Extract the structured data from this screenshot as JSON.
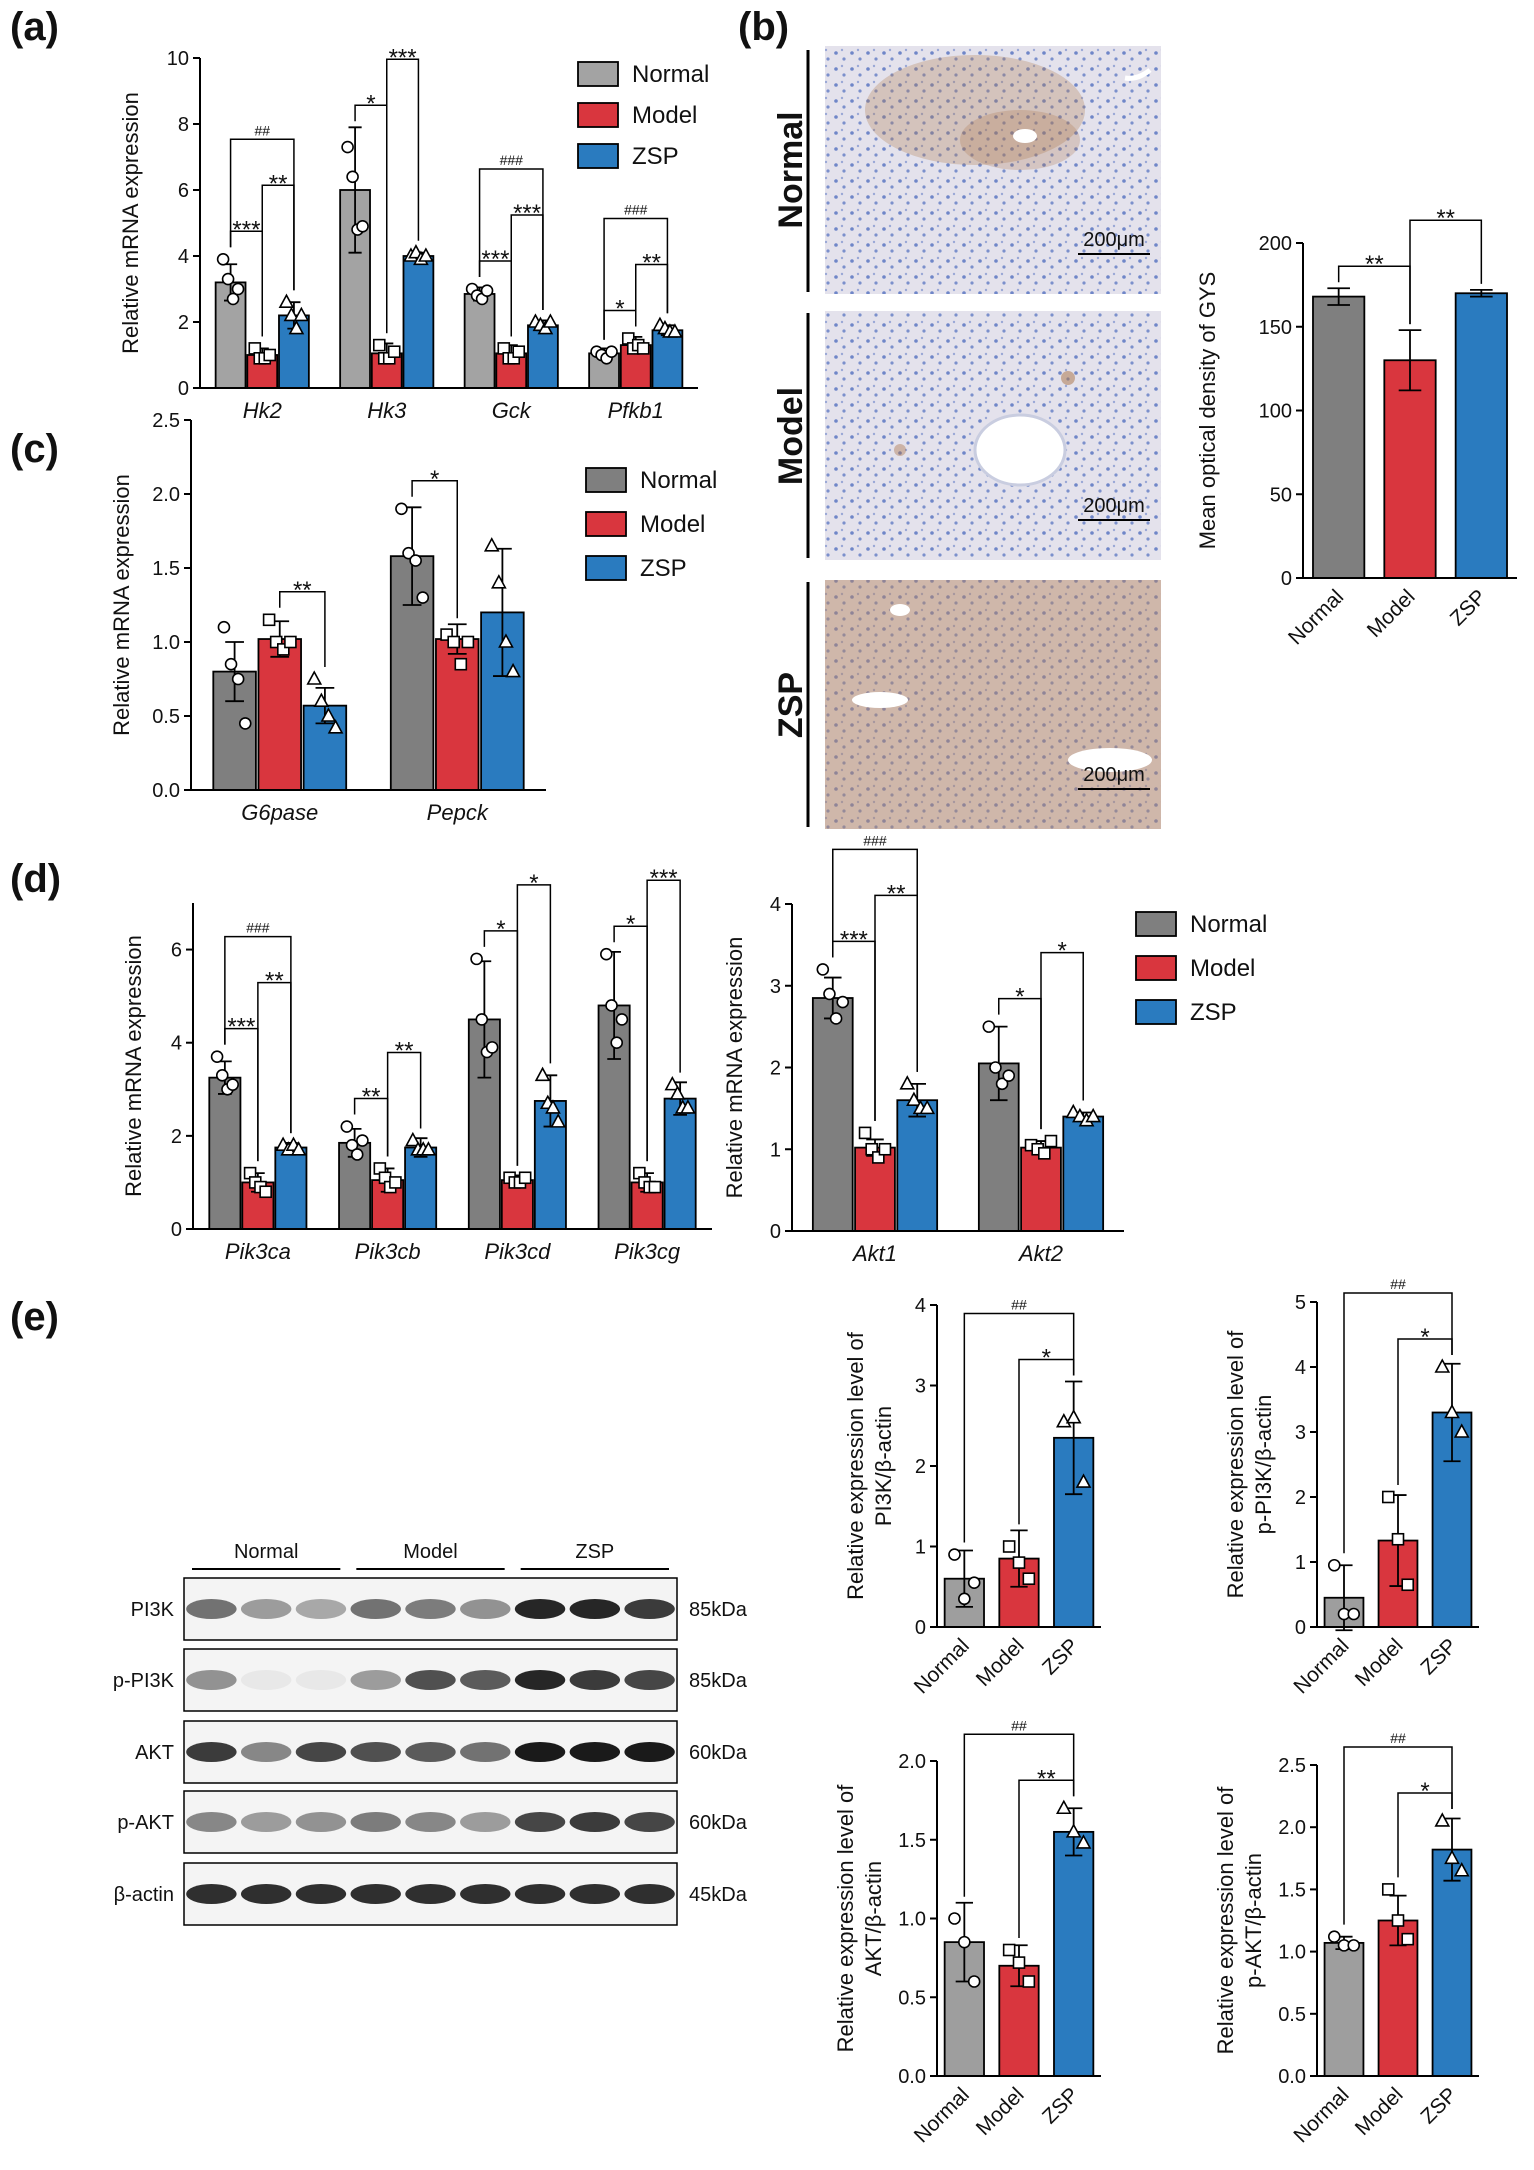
{
  "panel_labels": [
    "(a)",
    "(b)",
    "(c)",
    "(d)",
    "(e)"
  ],
  "micrographs": {
    "labels": [
      "Normal",
      "Model",
      "ZSP"
    ],
    "scale_bars": [
      "200μm",
      "200μm",
      "200μm"
    ]
  },
  "western_blot": {
    "groups": [
      "Normal",
      "Model",
      "ZSP"
    ],
    "rows": [
      {
        "protein": "PI3K",
        "size": "85kDa"
      },
      {
        "protein": "p-PI3K",
        "size": "85kDa"
      },
      {
        "protein": "AKT",
        "size": "60kDa"
      },
      {
        "protein": "p-AKT",
        "size": "60kDa"
      },
      {
        "protein": "β-actin",
        "size": "45kDa"
      }
    ]
  },
  "chart_data": [
    {
      "type": "bar",
      "ylabel": "Relative mRNA expression",
      "ylim": [
        0,
        10
      ],
      "yticks": [
        0,
        2,
        4,
        6,
        8,
        10
      ],
      "categories": [
        "Hk2",
        "Hk3",
        "Gck",
        "Pfkb1"
      ],
      "italic_categories": true,
      "legend": "top-right",
      "series": [
        {
          "name": "Normal",
          "color": "#a3a3a3",
          "values": [
            3.2,
            6.0,
            2.85,
            1.05
          ],
          "errors": [
            0.55,
            1.9,
            0.2,
            0.15
          ],
          "points": [
            [
              3.9,
              3.3,
              2.7,
              3.0
            ],
            [
              7.3,
              6.4,
              4.8,
              4.9
            ],
            [
              3.0,
              2.8,
              2.7,
              2.95
            ],
            [
              1.1,
              1.0,
              0.9,
              1.1
            ]
          ]
        },
        {
          "name": "Model",
          "color": "#d9363e",
          "values": [
            1.0,
            1.05,
            1.05,
            1.3
          ],
          "errors": [
            0.2,
            0.3,
            0.25,
            0.25
          ],
          "points": [
            [
              1.2,
              0.9,
              0.9,
              1.0
            ],
            [
              1.3,
              0.9,
              0.9,
              1.1
            ],
            [
              1.2,
              0.9,
              0.9,
              1.1
            ],
            [
              1.5,
              1.2,
              1.3,
              1.2
            ]
          ]
        },
        {
          "name": "ZSP",
          "color": "#2a7bbf",
          "values": [
            2.2,
            4.0,
            1.9,
            1.75
          ],
          "errors": [
            0.4,
            0.1,
            0.15,
            0.15
          ],
          "points": [
            [
              2.6,
              2.2,
              1.8,
              2.2
            ],
            [
              4.0,
              4.1,
              3.9,
              4.0
            ],
            [
              2.0,
              1.9,
              1.8,
              2.0
            ],
            [
              1.9,
              1.8,
              1.7,
              1.7
            ]
          ]
        }
      ],
      "annotations": [
        {
          "category": "Hk2",
          "pair": [
            "Normal",
            "Model"
          ],
          "label": "***"
        },
        {
          "category": "Hk2",
          "pair": [
            "Model",
            "ZSP"
          ],
          "label": "**"
        },
        {
          "category": "Hk2",
          "pair": [
            "Normal",
            "ZSP"
          ],
          "label": "##"
        },
        {
          "category": "Hk3",
          "pair": [
            "Normal",
            "Model"
          ],
          "label": "*"
        },
        {
          "category": "Hk3",
          "pair": [
            "Model",
            "ZSP"
          ],
          "label": "***"
        },
        {
          "category": "Gck",
          "pair": [
            "Normal",
            "Model"
          ],
          "label": "***"
        },
        {
          "category": "Gck",
          "pair": [
            "Model",
            "ZSP"
          ],
          "label": "***"
        },
        {
          "category": "Gck",
          "pair": [
            "Normal",
            "ZSP"
          ],
          "label": "###"
        },
        {
          "category": "Pfkb1",
          "pair": [
            "Normal",
            "Model"
          ],
          "label": "*"
        },
        {
          "category": "Pfkb1",
          "pair": [
            "Model",
            "ZSP"
          ],
          "label": "**"
        },
        {
          "category": "Pfkb1",
          "pair": [
            "Normal",
            "ZSP"
          ],
          "label": "###"
        }
      ]
    },
    {
      "type": "bar",
      "ylabel": "Mean optical density of GYS",
      "ylim": [
        0,
        200
      ],
      "yticks": [
        0,
        50,
        100,
        150,
        200
      ],
      "categories": [
        "Normal",
        "Model",
        "ZSP"
      ],
      "rotate_categories": true,
      "colors": [
        "#7f7f7f",
        "#d9363e",
        "#2a7bbf"
      ],
      "values": [
        168,
        130,
        170
      ],
      "errors": [
        5,
        18,
        2
      ],
      "annotations": [
        {
          "pair": [
            "Normal",
            "Model"
          ],
          "label": "**"
        },
        {
          "pair": [
            "Model",
            "ZSP"
          ],
          "label": "**"
        }
      ]
    },
    {
      "type": "bar",
      "ylabel": "Relative mRNA expression",
      "ylim": [
        0,
        2.5
      ],
      "yticks": [
        {
          "value": 0,
          "label": "0.0"
        },
        0.5,
        {
          "value": 1,
          "label": "1.0"
        },
        1.5,
        {
          "value": 2,
          "label": "2.0"
        },
        2.5
      ],
      "categories": [
        "G6pase",
        "Pepck"
      ],
      "italic_categories": true,
      "legend": "top-right",
      "series": [
        {
          "name": "Normal",
          "color": "#7f7f7f",
          "values": [
            0.8,
            1.58
          ],
          "errors": [
            0.2,
            0.33
          ],
          "points": [
            [
              1.1,
              0.85,
              0.75,
              0.45
            ],
            [
              1.9,
              1.6,
              1.55,
              1.3
            ]
          ]
        },
        {
          "name": "Model",
          "color": "#d9363e",
          "values": [
            1.02,
            1.02
          ],
          "errors": [
            0.12,
            0.1
          ],
          "points": [
            [
              1.15,
              1.0,
              0.95,
              1.0
            ],
            [
              1.05,
              1.0,
              0.85,
              1.0
            ]
          ]
        },
        {
          "name": "ZSP",
          "color": "#2a7bbf",
          "values": [
            0.57,
            1.2
          ],
          "errors": [
            0.12,
            0.43
          ],
          "points": [
            [
              0.75,
              0.6,
              0.5,
              0.42
            ],
            [
              1.65,
              1.4,
              1.0,
              0.8
            ]
          ]
        }
      ],
      "annotations": [
        {
          "category": "G6pase",
          "pair": [
            "Model",
            "ZSP"
          ],
          "label": "**"
        },
        {
          "category": "Pepck",
          "pair": [
            "Normal",
            "Model"
          ],
          "label": "*"
        }
      ]
    },
    {
      "type": "bar",
      "ylabel": "Relative mRNA expression",
      "ylim": [
        0,
        7
      ],
      "yticks": [
        0,
        2,
        4,
        6
      ],
      "categories": [
        "Pik3ca",
        "Pik3cb",
        "Pik3cd",
        "Pik3cg"
      ],
      "italic_categories": true,
      "series": [
        {
          "name": "Normal",
          "color": "#7f7f7f",
          "values": [
            3.25,
            1.85,
            4.5,
            4.8
          ],
          "errors": [
            0.35,
            0.3,
            1.25,
            1.15
          ],
          "points": [
            [
              3.7,
              3.3,
              3.0,
              3.1
            ],
            [
              2.2,
              1.8,
              1.6,
              1.9
            ],
            [
              5.8,
              4.5,
              3.8,
              3.9
            ],
            [
              5.9,
              4.8,
              4.0,
              4.5
            ]
          ]
        },
        {
          "name": "Model",
          "color": "#d9363e",
          "values": [
            1.0,
            1.05,
            1.05,
            1.0
          ],
          "errors": [
            0.2,
            0.25,
            0.1,
            0.2
          ],
          "points": [
            [
              1.2,
              1.0,
              0.9,
              0.8
            ],
            [
              1.3,
              1.1,
              0.9,
              1.0
            ],
            [
              1.1,
              1.0,
              1.0,
              1.1
            ],
            [
              1.2,
              1.0,
              0.9,
              0.9
            ]
          ]
        },
        {
          "name": "ZSP",
          "color": "#2a7bbf",
          "values": [
            1.75,
            1.75,
            2.75,
            2.8
          ],
          "errors": [
            0.1,
            0.2,
            0.55,
            0.35
          ],
          "points": [
            [
              1.8,
              1.7,
              1.8,
              1.7
            ],
            [
              1.9,
              1.7,
              1.7,
              1.7
            ],
            [
              3.3,
              2.7,
              2.6,
              2.3
            ],
            [
              3.1,
              2.9,
              2.6,
              2.6
            ]
          ]
        }
      ],
      "annotations": [
        {
          "category": "Pik3ca",
          "pair": [
            "Normal",
            "Model"
          ],
          "label": "***"
        },
        {
          "category": "Pik3ca",
          "pair": [
            "Model",
            "ZSP"
          ],
          "label": "**"
        },
        {
          "category": "Pik3ca",
          "pair": [
            "Normal",
            "ZSP"
          ],
          "label": "###"
        },
        {
          "category": "Pik3cb",
          "pair": [
            "Normal",
            "Model"
          ],
          "label": "**"
        },
        {
          "category": "Pik3cb",
          "pair": [
            "Model",
            "ZSP"
          ],
          "label": "**"
        },
        {
          "category": "Pik3cd",
          "pair": [
            "Normal",
            "Model"
          ],
          "label": "*"
        },
        {
          "category": "Pik3cd",
          "pair": [
            "Model",
            "ZSP"
          ],
          "label": "*"
        },
        {
          "category": "Pik3cg",
          "pair": [
            "Normal",
            "Model"
          ],
          "label": "*"
        },
        {
          "category": "Pik3cg",
          "pair": [
            "Model",
            "ZSP"
          ],
          "label": "***"
        }
      ]
    },
    {
      "type": "bar",
      "ylabel": "Relative mRNA expression",
      "ylim": [
        0,
        4
      ],
      "yticks": [
        0,
        1,
        2,
        3,
        4
      ],
      "categories": [
        "Akt1",
        "Akt2"
      ],
      "italic_categories": true,
      "legend": "top-right",
      "series": [
        {
          "name": "Normal",
          "color": "#7f7f7f",
          "values": [
            2.85,
            2.05
          ],
          "errors": [
            0.25,
            0.45
          ],
          "points": [
            [
              3.2,
              2.9,
              2.6,
              2.8
            ],
            [
              2.5,
              2.0,
              1.8,
              1.9
            ]
          ]
        },
        {
          "name": "Model",
          "color": "#d9363e",
          "values": [
            1.02,
            1.02
          ],
          "errors": [
            0.1,
            0.08
          ],
          "points": [
            [
              1.2,
              1.0,
              0.9,
              1.0
            ],
            [
              1.05,
              1.0,
              0.95,
              1.1
            ]
          ]
        },
        {
          "name": "ZSP",
          "color": "#2a7bbf",
          "values": [
            1.6,
            1.4
          ],
          "errors": [
            0.2,
            0.05
          ],
          "points": [
            [
              1.8,
              1.6,
              1.5,
              1.5
            ],
            [
              1.45,
              1.4,
              1.35,
              1.4
            ]
          ]
        }
      ],
      "annotations": [
        {
          "category": "Akt1",
          "pair": [
            "Normal",
            "Model"
          ],
          "label": "***"
        },
        {
          "category": "Akt1",
          "pair": [
            "Model",
            "ZSP"
          ],
          "label": "**"
        },
        {
          "category": "Akt1",
          "pair": [
            "Normal",
            "ZSP"
          ],
          "label": "###"
        },
        {
          "category": "Akt2",
          "pair": [
            "Normal",
            "Model"
          ],
          "label": "*"
        },
        {
          "category": "Akt2",
          "pair": [
            "Model",
            "ZSP"
          ],
          "label": "*"
        }
      ]
    },
    {
      "type": "bar",
      "ylabel": [
        "Relative expression level of",
        "PI3K/β-actin"
      ],
      "ylim": [
        0,
        4
      ],
      "yticks": [
        0,
        1,
        2,
        3,
        4
      ],
      "categories": [
        "Normal",
        "Model",
        "ZSP"
      ],
      "rotate_categories": true,
      "colors": [
        "#9e9e9e",
        "#d9363e",
        "#2a7bbf"
      ],
      "values": [
        0.6,
        0.85,
        2.35
      ],
      "errors": [
        0.35,
        0.35,
        0.7
      ],
      "points": [
        [
          0.9,
          0.35,
          0.55
        ],
        [
          1.0,
          0.8,
          0.6
        ],
        [
          2.55,
          2.6,
          1.8
        ]
      ],
      "annotations": [
        {
          "pair": [
            "Normal",
            "ZSP"
          ],
          "label": "##"
        },
        {
          "pair": [
            "Model",
            "ZSP"
          ],
          "label": "*"
        }
      ]
    },
    {
      "type": "bar",
      "ylabel": [
        "Relative expression level of",
        "p-PI3K/β-actin"
      ],
      "ylim": [
        0,
        5
      ],
      "yticks": [
        0,
        1,
        2,
        3,
        4,
        5
      ],
      "categories": [
        "Normal",
        "Model",
        "ZSP"
      ],
      "rotate_categories": true,
      "colors": [
        "#9e9e9e",
        "#d9363e",
        "#2a7bbf"
      ],
      "values": [
        0.45,
        1.33,
        3.3
      ],
      "errors": [
        0.5,
        0.7,
        0.75
      ],
      "points": [
        [
          0.95,
          0.2,
          0.2
        ],
        [
          2.0,
          1.35,
          0.65
        ],
        [
          4.0,
          3.3,
          3.0
        ]
      ],
      "annotations": [
        {
          "pair": [
            "Normal",
            "ZSP"
          ],
          "label": "##"
        },
        {
          "pair": [
            "Model",
            "ZSP"
          ],
          "label": "*"
        }
      ]
    },
    {
      "type": "bar",
      "ylabel": [
        "Relative expression level of",
        "AKT/β-actin"
      ],
      "ylim": [
        0,
        2
      ],
      "yticks": [
        {
          "value": 0,
          "label": "0.0"
        },
        0.5,
        {
          "value": 1,
          "label": "1.0"
        },
        1.5,
        {
          "value": 2,
          "label": "2.0"
        }
      ],
      "categories": [
        "Normal",
        "Model",
        "ZSP"
      ],
      "rotate_categories": true,
      "colors": [
        "#9e9e9e",
        "#d9363e",
        "#2a7bbf"
      ],
      "values": [
        0.85,
        0.7,
        1.55
      ],
      "errors": [
        0.25,
        0.13,
        0.15
      ],
      "points": [
        [
          1.0,
          0.85,
          0.6
        ],
        [
          0.8,
          0.72,
          0.6
        ],
        [
          1.7,
          1.55,
          1.48
        ]
      ],
      "annotations": [
        {
          "pair": [
            "Normal",
            "ZSP"
          ],
          "label": "##"
        },
        {
          "pair": [
            "Model",
            "ZSP"
          ],
          "label": "**"
        }
      ]
    },
    {
      "type": "bar",
      "ylabel": [
        "Relative expression level of",
        "p-AKT/β-actin"
      ],
      "ylim": [
        0,
        2.5
      ],
      "yticks": [
        {
          "value": 0,
          "label": "0.0"
        },
        0.5,
        {
          "value": 1,
          "label": "1.0"
        },
        1.5,
        {
          "value": 2,
          "label": "2.0"
        },
        2.5
      ],
      "categories": [
        "Normal",
        "Model",
        "ZSP"
      ],
      "rotate_categories": true,
      "colors": [
        "#9e9e9e",
        "#d9363e",
        "#2a7bbf"
      ],
      "values": [
        1.07,
        1.25,
        1.82
      ],
      "errors": [
        0.05,
        0.2,
        0.25
      ],
      "points": [
        [
          1.12,
          1.05,
          1.05
        ],
        [
          1.5,
          1.25,
          1.1
        ],
        [
          2.05,
          1.75,
          1.65
        ]
      ],
      "annotations": [
        {
          "pair": [
            "Normal",
            "ZSP"
          ],
          "label": "##"
        },
        {
          "pair": [
            "Model",
            "ZSP"
          ],
          "label": "*"
        }
      ]
    }
  ]
}
